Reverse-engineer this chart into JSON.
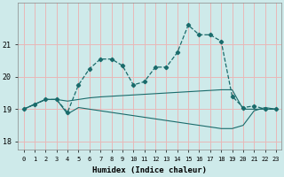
{
  "xlabel": "Humidex (Indice chaleur)",
  "bg_color": "#ceeaea",
  "line_color": "#1a6b6b",
  "grid_color": "#e8b8b8",
  "line1_x": [
    0,
    1,
    2,
    3,
    4,
    5,
    6,
    7,
    8,
    9,
    10,
    11,
    12,
    13,
    14,
    15,
    16,
    17,
    18,
    19,
    20,
    21,
    22,
    23
  ],
  "line1_y": [
    19.0,
    19.15,
    19.3,
    19.3,
    18.9,
    19.75,
    20.25,
    20.55,
    20.55,
    20.35,
    19.75,
    19.85,
    20.3,
    20.3,
    20.75,
    21.6,
    21.3,
    21.3,
    21.1,
    19.4,
    19.05,
    19.1,
    19.0,
    19.0
  ],
  "line2_x": [
    0,
    1,
    2,
    3,
    4,
    5,
    6,
    7,
    8,
    9,
    10,
    11,
    12,
    13,
    14,
    15,
    16,
    17,
    18,
    19,
    20,
    21,
    22,
    23
  ],
  "line2_y": [
    19.0,
    19.15,
    19.3,
    19.3,
    19.25,
    19.3,
    19.35,
    19.38,
    19.4,
    19.42,
    19.44,
    19.46,
    19.48,
    19.5,
    19.52,
    19.54,
    19.56,
    19.58,
    19.6,
    19.6,
    19.0,
    19.0,
    19.0,
    19.0
  ],
  "line3_x": [
    0,
    1,
    2,
    3,
    4,
    5,
    6,
    7,
    8,
    9,
    10,
    11,
    12,
    13,
    14,
    15,
    16,
    17,
    18,
    19,
    20,
    21,
    22,
    23
  ],
  "line3_y": [
    19.0,
    19.15,
    19.3,
    19.3,
    18.85,
    19.05,
    19.0,
    18.95,
    18.9,
    18.85,
    18.8,
    18.75,
    18.7,
    18.65,
    18.6,
    18.55,
    18.5,
    18.45,
    18.4,
    18.4,
    18.5,
    18.95,
    19.05,
    19.0
  ],
  "ylim": [
    17.75,
    22.3
  ],
  "yticks": [
    18,
    19,
    20,
    21
  ],
  "xticks": [
    0,
    1,
    2,
    3,
    4,
    5,
    6,
    7,
    8,
    9,
    10,
    11,
    12,
    13,
    14,
    15,
    16,
    17,
    18,
    19,
    20,
    21,
    22,
    23
  ]
}
